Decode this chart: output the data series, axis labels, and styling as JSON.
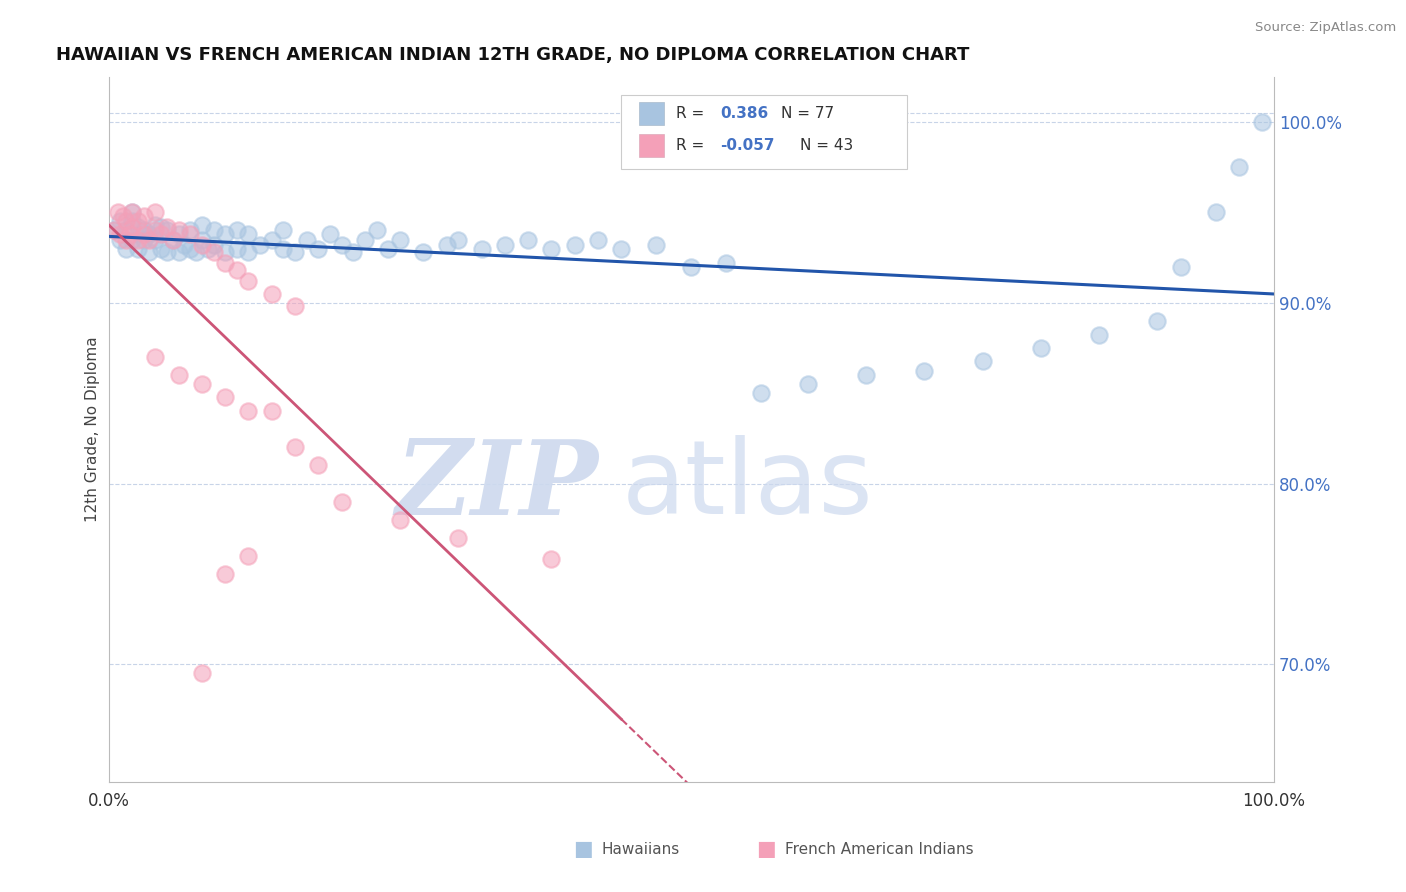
{
  "title": "HAWAIIAN VS FRENCH AMERICAN INDIAN 12TH GRADE, NO DIPLOMA CORRELATION CHART",
  "source": "Source: ZipAtlas.com",
  "ylabel": "12th Grade, No Diploma",
  "xlim": [
    0.0,
    1.0
  ],
  "ylim": [
    0.635,
    1.025
  ],
  "ytick_vals": [
    0.7,
    0.8,
    0.9,
    1.0
  ],
  "ytick_labels": [
    "70.0%",
    "80.0%",
    "90.0%",
    "100.0%"
  ],
  "legend_R1": "0.386",
  "legend_N1": "77",
  "legend_R2": "-0.057",
  "legend_N2": "43",
  "blue_scatter_color": "#a8c4e0",
  "pink_scatter_color": "#f4a0b8",
  "blue_line_color": "#2255aa",
  "pink_line_color": "#cc5577",
  "grid_color": "#c8d4e8",
  "watermark_color": "#cdd9ee",
  "legend_label1": "Hawaiians",
  "legend_label2": "French American Indians",
  "background": "#ffffff",
  "title_color": "#111111",
  "source_color": "#888888",
  "tick_color": "#4472c4",
  "hawaiians_x": [
    0.005,
    0.01,
    0.01,
    0.015,
    0.015,
    0.02,
    0.02,
    0.02,
    0.025,
    0.025,
    0.03,
    0.03,
    0.035,
    0.035,
    0.04,
    0.04,
    0.045,
    0.045,
    0.05,
    0.05,
    0.055,
    0.06,
    0.06,
    0.065,
    0.07,
    0.07,
    0.075,
    0.08,
    0.08,
    0.085,
    0.09,
    0.09,
    0.1,
    0.1,
    0.11,
    0.11,
    0.12,
    0.12,
    0.13,
    0.14,
    0.15,
    0.15,
    0.16,
    0.17,
    0.18,
    0.19,
    0.2,
    0.21,
    0.22,
    0.23,
    0.24,
    0.25,
    0.27,
    0.29,
    0.3,
    0.32,
    0.34,
    0.36,
    0.38,
    0.4,
    0.42,
    0.44,
    0.47,
    0.5,
    0.53,
    0.56,
    0.6,
    0.65,
    0.7,
    0.75,
    0.8,
    0.85,
    0.9,
    0.92,
    0.95,
    0.97,
    0.99
  ],
  "hawaiians_y": [
    0.94,
    0.935,
    0.945,
    0.93,
    0.94,
    0.935,
    0.945,
    0.95,
    0.93,
    0.942,
    0.935,
    0.94,
    0.928,
    0.938,
    0.935,
    0.943,
    0.93,
    0.942,
    0.928,
    0.94,
    0.935,
    0.928,
    0.938,
    0.932,
    0.93,
    0.94,
    0.928,
    0.935,
    0.943,
    0.93,
    0.932,
    0.94,
    0.928,
    0.938,
    0.93,
    0.94,
    0.928,
    0.938,
    0.932,
    0.935,
    0.93,
    0.94,
    0.928,
    0.935,
    0.93,
    0.938,
    0.932,
    0.928,
    0.935,
    0.94,
    0.93,
    0.935,
    0.928,
    0.932,
    0.935,
    0.93,
    0.932,
    0.935,
    0.93,
    0.932,
    0.935,
    0.93,
    0.932,
    0.92,
    0.922,
    0.85,
    0.855,
    0.86,
    0.862,
    0.868,
    0.875,
    0.882,
    0.89,
    0.92,
    0.95,
    0.975,
    1.0
  ],
  "french_x": [
    0.005,
    0.008,
    0.01,
    0.012,
    0.015,
    0.015,
    0.018,
    0.02,
    0.02,
    0.025,
    0.025,
    0.03,
    0.03,
    0.035,
    0.04,
    0.04,
    0.045,
    0.05,
    0.055,
    0.06,
    0.07,
    0.08,
    0.09,
    0.1,
    0.11,
    0.12,
    0.14,
    0.16,
    0.04,
    0.06,
    0.08,
    0.1,
    0.12,
    0.14,
    0.16,
    0.18,
    0.2,
    0.25,
    0.3,
    0.38,
    0.12,
    0.1,
    0.08
  ],
  "french_y": [
    0.94,
    0.95,
    0.938,
    0.948,
    0.935,
    0.945,
    0.938,
    0.942,
    0.95,
    0.935,
    0.945,
    0.938,
    0.948,
    0.935,
    0.94,
    0.95,
    0.938,
    0.942,
    0.935,
    0.94,
    0.938,
    0.932,
    0.928,
    0.922,
    0.918,
    0.912,
    0.905,
    0.898,
    0.87,
    0.86,
    0.855,
    0.848,
    0.84,
    0.84,
    0.82,
    0.81,
    0.79,
    0.78,
    0.77,
    0.758,
    0.76,
    0.75,
    0.695
  ]
}
